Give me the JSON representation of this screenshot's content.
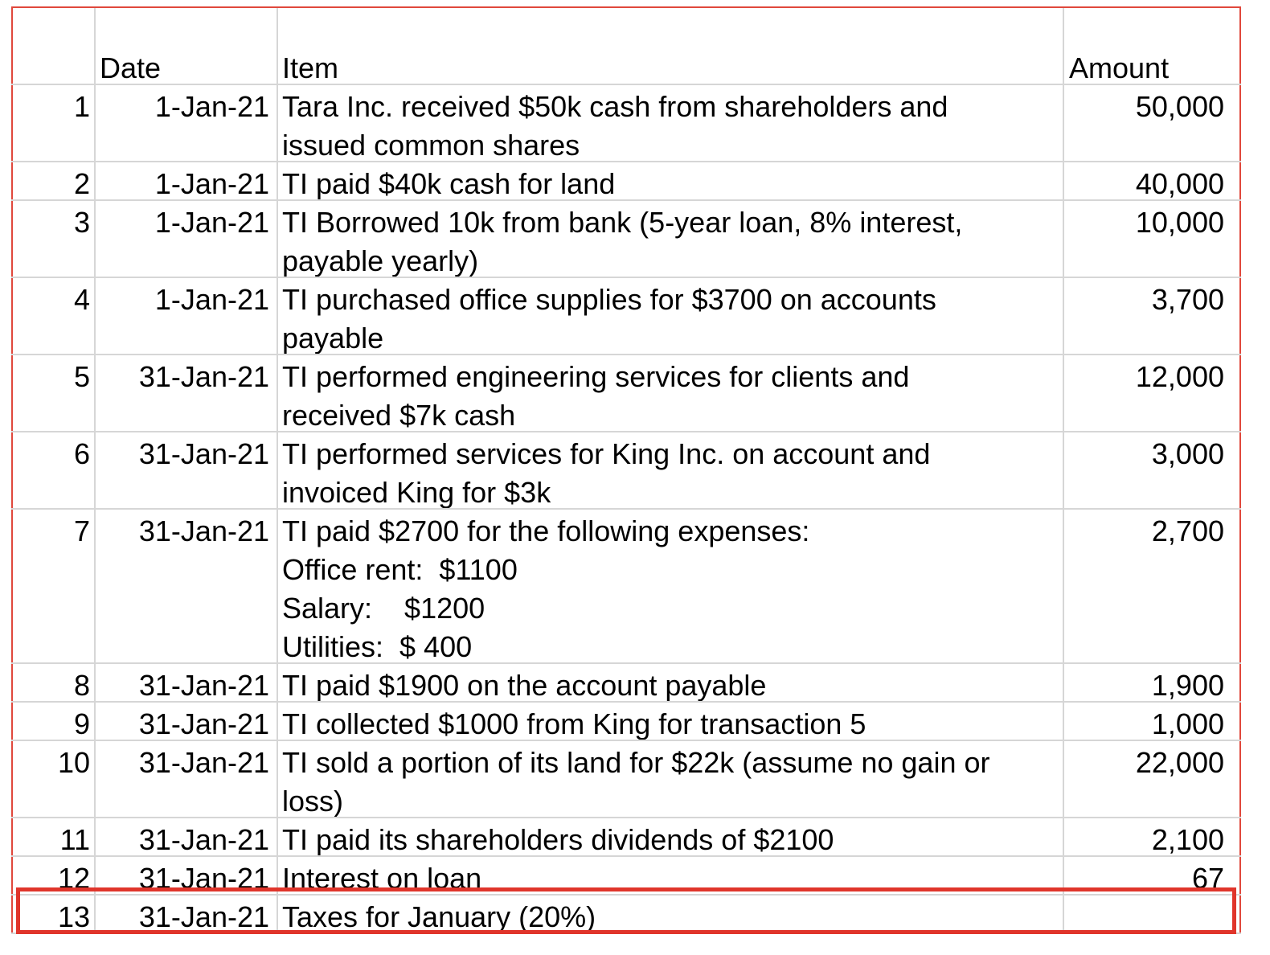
{
  "table": {
    "header": {
      "date": "Date",
      "item": "Item",
      "amount": "Amount"
    },
    "rows": [
      {
        "num": 1,
        "date": "1-Jan-21",
        "item": [
          "Tara Inc. received $50k cash from shareholders and",
          "issued common shares"
        ],
        "amount": "50,000"
      },
      {
        "num": 2,
        "date": "1-Jan-21",
        "item": [
          "TI paid $40k cash for land"
        ],
        "amount": "40,000"
      },
      {
        "num": 3,
        "date": "1-Jan-21",
        "item": [
          "TI Borrowed 10k from bank (5-year loan, 8% interest,",
          "payable yearly)"
        ],
        "amount": "10,000"
      },
      {
        "num": 4,
        "date": "1-Jan-21",
        "item": [
          "TI purchased office supplies for $3700 on accounts",
          "payable"
        ],
        "amount": "3,700"
      },
      {
        "num": 5,
        "date": "31-Jan-21",
        "item": [
          "TI performed engineering services for clients and",
          "received $7k cash"
        ],
        "amount": "12,000"
      },
      {
        "num": 6,
        "date": "31-Jan-21",
        "item": [
          "TI performed services for King Inc. on account and",
          "invoiced King for $3k"
        ],
        "amount": "3,000"
      },
      {
        "num": 7,
        "date": "31-Jan-21",
        "item": [
          "TI paid $2700 for the following expenses:",
          "Office rent:  $1100",
          "Salary:    $1200",
          "Utilities:  $ 400"
        ],
        "amount": "2,700"
      },
      {
        "num": 8,
        "date": "31-Jan-21",
        "item": [
          "TI paid $1900 on the account payable"
        ],
        "amount": "1,900"
      },
      {
        "num": 9,
        "date": "31-Jan-21",
        "item": [
          "TI collected $1000 from King for transaction 5"
        ],
        "amount": "1,000"
      },
      {
        "num": 10,
        "date": "31-Jan-21",
        "item": [
          "TI sold a portion of its land for $22k (assume no gain or",
          "loss)"
        ],
        "amount": "22,000"
      },
      {
        "num": 11,
        "date": "31-Jan-21",
        "item": [
          "TI paid its shareholders dividends of $2100"
        ],
        "amount": "2,100"
      },
      {
        "num": 12,
        "date": "31-Jan-21",
        "item": [
          "Interest on loan"
        ],
        "amount": "67"
      },
      {
        "num": 13,
        "date": "31-Jan-21",
        "item": [
          "Taxes for January (20%)"
        ]
      }
    ]
  }
}
